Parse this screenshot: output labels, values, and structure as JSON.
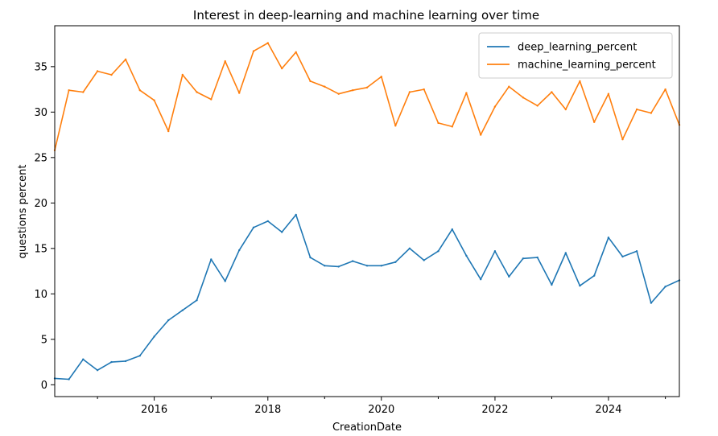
{
  "chart_data": {
    "type": "line",
    "title": "Interest in deep-learning and machine learning over time",
    "xlabel": "CreationDate",
    "ylabel": "questions percent",
    "xlim": [
      "2014-04-01",
      "2025-04-01"
    ],
    "ylim": [
      -1.3,
      39.5
    ],
    "x_ticks": [
      "2016",
      "2018",
      "2020",
      "2022",
      "2024"
    ],
    "y_ticks": [
      0,
      5,
      10,
      15,
      20,
      25,
      30,
      35
    ],
    "grid": false,
    "legend": "top-right",
    "x": [
      "2014-04-01",
      "2014-07-01",
      "2014-10-01",
      "2015-01-01",
      "2015-04-01",
      "2015-07-01",
      "2015-10-01",
      "2016-01-01",
      "2016-04-01",
      "2016-07-01",
      "2016-10-01",
      "2017-01-01",
      "2017-04-01",
      "2017-07-01",
      "2017-10-01",
      "2018-01-01",
      "2018-04-01",
      "2018-07-01",
      "2018-10-01",
      "2019-01-01",
      "2019-04-01",
      "2019-07-01",
      "2019-10-01",
      "2020-01-01",
      "2020-04-01",
      "2020-07-01",
      "2020-10-01",
      "2021-01-01",
      "2021-04-01",
      "2021-07-01",
      "2021-10-01",
      "2022-01-01",
      "2022-04-01",
      "2022-07-01",
      "2022-10-01",
      "2023-01-01",
      "2023-04-01",
      "2023-07-01",
      "2023-10-01",
      "2024-01-01",
      "2024-04-01",
      "2024-07-01",
      "2024-10-01",
      "2025-01-01",
      "2025-04-01"
    ],
    "series": [
      {
        "name": "deep_learning_percent",
        "color": "#1f77b4",
        "values": [
          0.7,
          0.6,
          2.8,
          1.6,
          2.5,
          2.6,
          3.2,
          5.3,
          7.1,
          8.2,
          9.3,
          13.8,
          11.4,
          14.8,
          17.3,
          18.0,
          16.8,
          18.7,
          14.0,
          13.1,
          13.0,
          13.6,
          13.1,
          13.1,
          13.5,
          15.0,
          13.7,
          14.7,
          17.1,
          14.2,
          11.6,
          14.7,
          11.9,
          13.9,
          14.0,
          11.0,
          14.5,
          10.9,
          12.0,
          16.2,
          14.1,
          14.7,
          9.0,
          10.8,
          11.5
        ]
      },
      {
        "name": "machine_learning_percent",
        "color": "#ff7f0e",
        "values": [
          25.8,
          32.4,
          32.2,
          34.5,
          34.1,
          35.8,
          32.4,
          31.3,
          27.9,
          34.1,
          32.2,
          31.4,
          35.6,
          32.1,
          36.7,
          37.6,
          34.8,
          36.6,
          33.4,
          32.8,
          32.0,
          32.4,
          32.7,
          33.9,
          28.5,
          32.2,
          32.5,
          28.8,
          28.4,
          32.1,
          27.5,
          30.6,
          32.8,
          31.6,
          30.7,
          32.2,
          30.3,
          33.4,
          28.9,
          32.0,
          27.0,
          30.3,
          29.9,
          32.5,
          28.6
        ]
      }
    ]
  }
}
